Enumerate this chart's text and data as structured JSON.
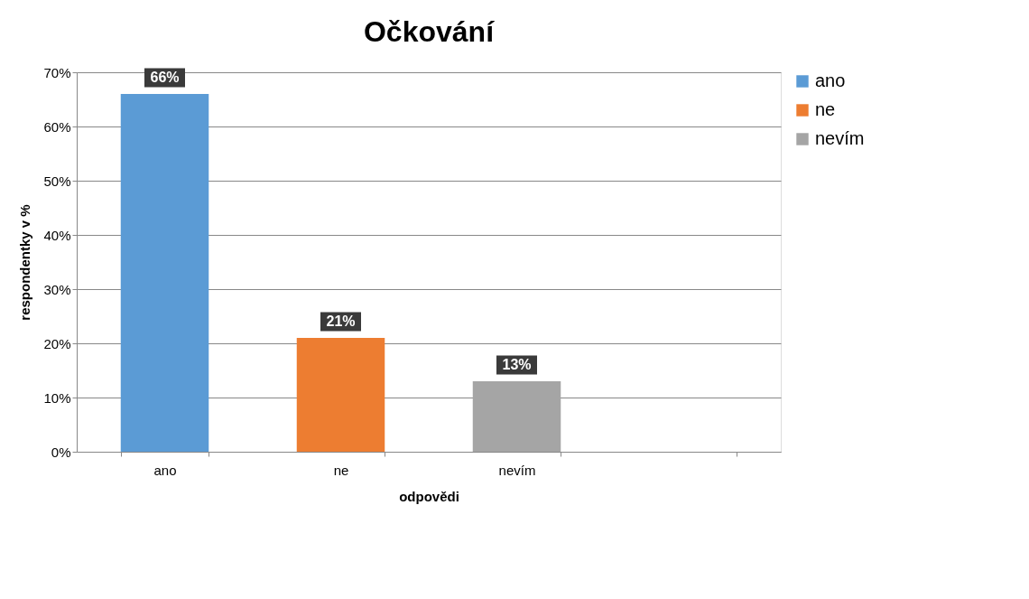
{
  "chart_data": {
    "type": "bar",
    "title": "Očkování",
    "xlabel": "odpovědi",
    "ylabel": "respondentky v %",
    "categories": [
      "ano",
      "ne",
      "nevím",
      null
    ],
    "series": [
      {
        "name": "ano",
        "color": "#5b9bd5",
        "values": [
          66,
          null,
          null,
          null
        ],
        "value_labels": [
          "66%",
          null,
          null,
          null
        ]
      },
      {
        "name": "ne",
        "color": "#ed7d31",
        "values": [
          null,
          21,
          null,
          null
        ],
        "value_labels": [
          null,
          "21%",
          null,
          null
        ]
      },
      {
        "name": "nevím",
        "color": "#a5a5a5",
        "values": [
          null,
          null,
          13,
          null
        ],
        "value_labels": [
          null,
          null,
          "13%",
          null
        ]
      }
    ],
    "ylim": [
      0,
      70
    ],
    "yticks": [
      {
        "value": 0,
        "label": "0%"
      },
      {
        "value": 10,
        "label": "10%"
      },
      {
        "value": 20,
        "label": "20%"
      },
      {
        "value": 30,
        "label": "30%"
      },
      {
        "value": 40,
        "label": "40%"
      },
      {
        "value": 50,
        "label": "50%"
      },
      {
        "value": 60,
        "label": "60%"
      },
      {
        "value": 70,
        "label": "70%"
      }
    ],
    "grid": "y",
    "legend": "right"
  }
}
